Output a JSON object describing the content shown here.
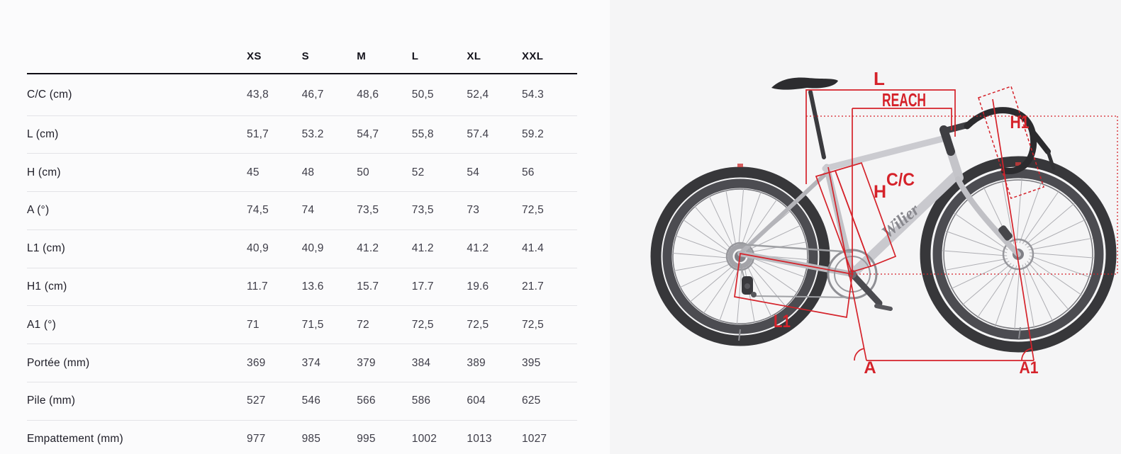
{
  "table": {
    "size_headers": [
      "XS",
      "S",
      "M",
      "L",
      "XL",
      "XXL"
    ],
    "rows": [
      {
        "label": "C/C (cm)",
        "values": [
          "43,8",
          "46,7",
          "48,6",
          "50,5",
          "52,4",
          "54.3"
        ]
      },
      {
        "label": "L (cm)",
        "values": [
          "51,7",
          "53.2",
          "54,7",
          "55,8",
          "57.4",
          "59.2"
        ]
      },
      {
        "label": "H (cm)",
        "values": [
          "45",
          "48",
          "50",
          "52",
          "54",
          "56"
        ]
      },
      {
        "label": "A (°)",
        "values": [
          "74,5",
          "74",
          "73,5",
          "73,5",
          "73",
          "72,5"
        ]
      },
      {
        "label": "L1 (cm)",
        "values": [
          "40,9",
          "40,9",
          "41.2",
          "41.2",
          "41.2",
          "41.4"
        ]
      },
      {
        "label": "H1 (cm)",
        "values": [
          "11.7",
          "13.6",
          "15.7",
          "17.7",
          "19.6",
          "21.7"
        ]
      },
      {
        "label": "A1 (°)",
        "values": [
          "71",
          "71,5",
          "72",
          "72,5",
          "72,5",
          "72,5"
        ]
      },
      {
        "label": "Portée (mm)",
        "values": [
          "369",
          "374",
          "379",
          "384",
          "389",
          "395"
        ]
      },
      {
        "label": "Pile (mm)",
        "values": [
          "527",
          "546",
          "566",
          "586",
          "604",
          "625"
        ]
      },
      {
        "label": "Empattement (mm)",
        "values": [
          "977",
          "985",
          "995",
          "1002",
          "1013",
          "1027"
        ]
      }
    ]
  },
  "diagram": {
    "accent_color": "#d5222a",
    "frame_logo": "Wilier",
    "annotation_labels": {
      "l": "L",
      "reach": "REACH",
      "h1": "H1",
      "cc": "C/C",
      "h": "H",
      "l1": "L1",
      "a": "A",
      "a1": "A1"
    }
  }
}
